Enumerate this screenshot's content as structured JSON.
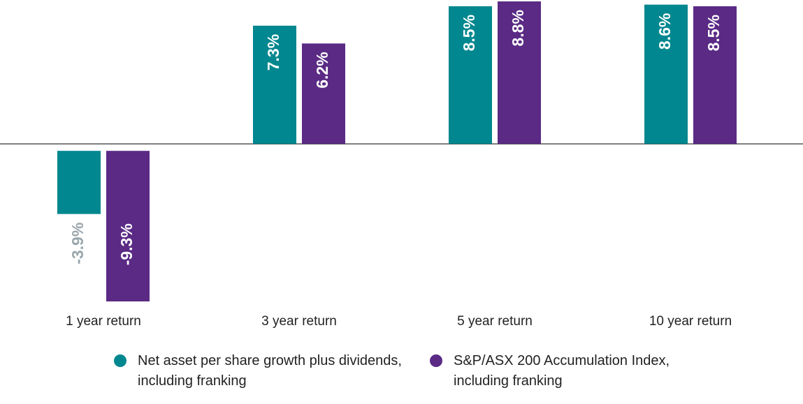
{
  "chart_data": {
    "type": "bar",
    "categories": [
      "1 year return",
      "3 year return",
      "5 year return",
      "10 year return"
    ],
    "series": [
      {
        "name": "Net asset per share growth plus dividends, including franking",
        "color": "#00878f",
        "values": [
          -3.9,
          7.3,
          8.5,
          8.6
        ],
        "value_labels": [
          "-3.9%",
          "7.3%",
          "8.5%",
          "8.6%"
        ]
      },
      {
        "name": "S&P/ASX 200 Accumulation Index, including franking",
        "color": "#5a2a85",
        "values": [
          -9.3,
          6.2,
          8.8,
          8.5
        ],
        "value_labels": [
          "-9.3%",
          "6.2%",
          "8.8%",
          "8.5%"
        ]
      }
    ]
  }
}
